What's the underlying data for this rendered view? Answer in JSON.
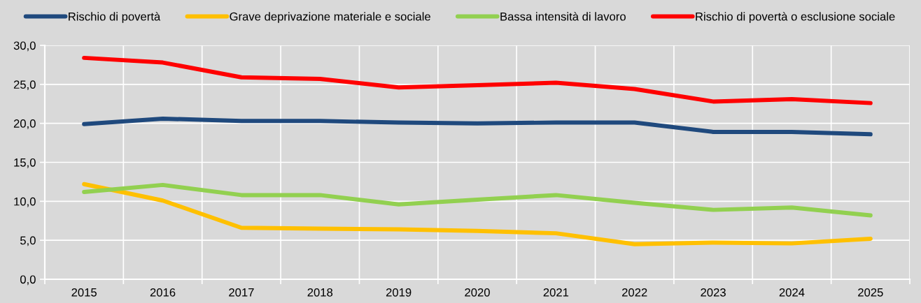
{
  "chart_data": {
    "type": "line",
    "categories": [
      "2015",
      "2016",
      "2017",
      "2018",
      "2019",
      "2020",
      "2021",
      "2022",
      "2023",
      "2024",
      "2025"
    ],
    "series": [
      {
        "name": "Rischio di povertà",
        "color": "#1f497d",
        "values": [
          19.9,
          20.6,
          20.3,
          20.3,
          20.1,
          20.0,
          20.1,
          20.1,
          18.9,
          18.9,
          18.6
        ]
      },
      {
        "name": "Grave deprivazione materiale e sociale",
        "color": "#ffc000",
        "values": [
          12.2,
          10.1,
          6.6,
          6.5,
          6.4,
          6.2,
          5.9,
          4.5,
          4.7,
          4.6,
          5.2
        ]
      },
      {
        "name": "Bassa intensità di lavoro",
        "color": "#92d050",
        "values": [
          11.2,
          12.1,
          10.8,
          10.8,
          9.6,
          10.2,
          10.8,
          9.8,
          8.9,
          9.2,
          8.2
        ]
      },
      {
        "name": "Rischio di povertà o esclusione sociale",
        "color": "#ff0000",
        "values": [
          28.4,
          27.8,
          25.9,
          25.7,
          24.6,
          24.9,
          25.2,
          24.4,
          22.8,
          23.1,
          22.6
        ]
      }
    ],
    "ylim": [
      0,
      30
    ],
    "yticks": [
      {
        "value": 0,
        "label": "0,0"
      },
      {
        "value": 5,
        "label": "5,0"
      },
      {
        "value": 10,
        "label": "10,0"
      },
      {
        "value": 15,
        "label": "15,0"
      },
      {
        "value": 20,
        "label": "20,0"
      },
      {
        "value": 25,
        "label": "25,0"
      },
      {
        "value": 30,
        "label": "30,0"
      }
    ],
    "grid": true,
    "legend": "top",
    "line_style": "solid"
  }
}
